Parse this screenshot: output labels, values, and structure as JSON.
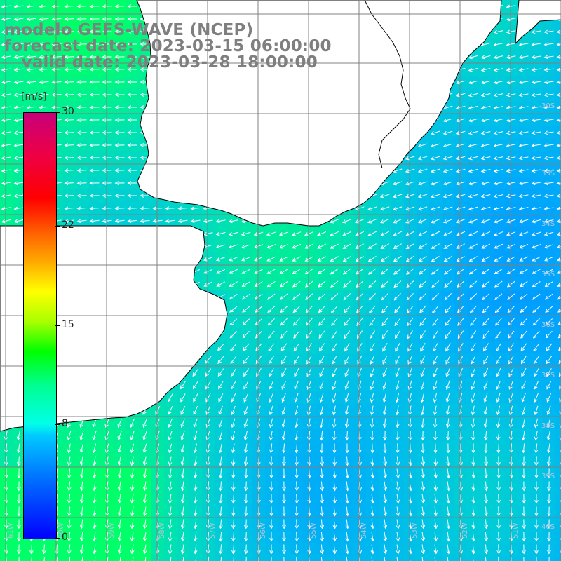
{
  "title": {
    "line1": "modelo GEFS-WAVE (NCEP)",
    "line2": "forecast date: 2023-03-15 06:00:00",
    "line3": "   valid date: 2023-03-28 18:00:00"
  },
  "colorbar": {
    "unit": "[m/s]",
    "ticks": [
      {
        "label": "30",
        "value": 30
      },
      {
        "label": "22",
        "value": 22
      },
      {
        "label": "15",
        "value": 15
      },
      {
        "label": "8",
        "value": 8
      },
      {
        "label": "0",
        "value": 0
      }
    ],
    "min": 0,
    "max": 30
  },
  "map": {
    "lat_labels": [
      "30S",
      "33S",
      "34S",
      "35S",
      "36S",
      "37S",
      "38S",
      "39S",
      "40S"
    ],
    "lon_labels": [
      "61W",
      "60W",
      "59W",
      "58W",
      "57W",
      "56W",
      "55W",
      "54W",
      "53W",
      "52W",
      "51W"
    ],
    "colors": {
      "land": "#ffffff",
      "coast": "#000000",
      "grid": "#808080",
      "arrow": "#ffffff",
      "title": "#7f7f7f"
    }
  }
}
